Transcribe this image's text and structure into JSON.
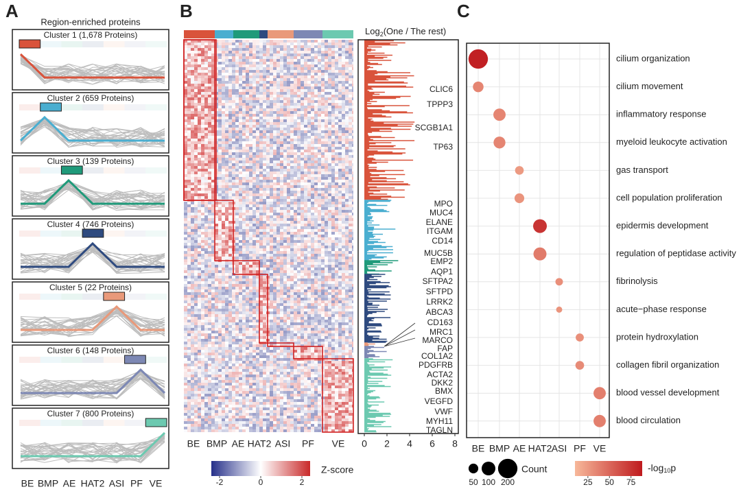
{
  "region_colors": [
    "#d9533b",
    "#4aaed0",
    "#1f9a7a",
    "#2e4a7f",
    "#e9997a",
    "#7d88b4",
    "#6cc9b0"
  ],
  "panel_a": {
    "letter": "A",
    "title": "Region-enriched proteins",
    "clusters": [
      "Cluster 1 (1,678 Proteins)",
      "Cluster 2 (659 Proteins)",
      "Cluster 3 (139 Proteins)",
      "Cluster 4 (746 Proteins)",
      "Cluster 5 (22 Proteins)",
      "Cluster 6 (148 Proteins)",
      "Cluster 7 (800 Proteins)"
    ],
    "regions": [
      "BE",
      "BMP",
      "AE",
      "HAT2",
      "ASI",
      "PF",
      "VE"
    ]
  },
  "panel_b": {
    "letter": "B",
    "regions": [
      "BE",
      "BMP",
      "AE",
      "HAT2",
      "ASI",
      "PF",
      "VE"
    ],
    "bar_title": {
      "base": "Log",
      "sub": "2",
      "rest": "(One / The rest)"
    },
    "xlim": [
      0,
      8
    ],
    "xticks": [
      0,
      2,
      4,
      6,
      8
    ],
    "genes": [
      {
        "name": "CLIC6",
        "color": "#d9533b"
      },
      {
        "name": "TPPP3",
        "color": "#d9533b"
      },
      {
        "name": "SCGB1A1",
        "color": "#d9533b"
      },
      {
        "name": "TP63",
        "color": "#d9533b"
      },
      {
        "name": "MPO",
        "color": "#4aaed0"
      },
      {
        "name": "MUC4",
        "color": "#4aaed0"
      },
      {
        "name": "ELANE",
        "color": "#4aaed0"
      },
      {
        "name": "ITGAM",
        "color": "#4aaed0"
      },
      {
        "name": "CD14",
        "color": "#4aaed0"
      },
      {
        "name": "MUC5B",
        "color": "#4aaed0"
      },
      {
        "name": "EMP2",
        "color": "#1f9a7a"
      },
      {
        "name": "AQP1",
        "color": "#1f9a7a"
      },
      {
        "name": "SFTPA2",
        "color": "#3a4a6a"
      },
      {
        "name": "SFTPD",
        "color": "#3a4a6a"
      },
      {
        "name": "LRRK2",
        "color": "#3a4a6a"
      },
      {
        "name": "ABCA3",
        "color": "#3a4a6a"
      },
      {
        "name": "CD163",
        "color": "#e9997a"
      },
      {
        "name": "MRC1",
        "color": "#e9997a"
      },
      {
        "name": "MARCO",
        "color": "#e9997a"
      },
      {
        "name": "FAP",
        "color": "#5a6a9a"
      },
      {
        "name": "COL1A2",
        "color": "#5a6a9a"
      },
      {
        "name": "PDGFRB",
        "color": "#6cc9b0"
      },
      {
        "name": "ACTA2",
        "color": "#6cc9b0"
      },
      {
        "name": "DKK2",
        "color": "#6cc9b0"
      },
      {
        "name": "BMX",
        "color": "#6cc9b0"
      },
      {
        "name": "VEGFD",
        "color": "#6cc9b0"
      },
      {
        "name": "VWF",
        "color": "#6cc9b0"
      },
      {
        "name": "MYH11",
        "color": "#6cc9b0"
      },
      {
        "name": "TAGLN",
        "color": "#6cc9b0"
      }
    ],
    "colorbar": {
      "lim": [
        -2.4,
        2.4
      ],
      "ticks": [
        -2,
        0,
        2
      ],
      "label": "Z-score"
    }
  },
  "panel_c": {
    "letter": "C",
    "regions": [
      "BE",
      "BMP",
      "AE",
      "HAT2",
      "ASI",
      "PF",
      "VE"
    ],
    "terms": [
      {
        "name": "cilium organization",
        "region": "BE",
        "count": 200,
        "log10p": 85
      },
      {
        "name": "cilium movement",
        "region": "BE",
        "count": 60,
        "log10p": 35
      },
      {
        "name": "inflammatory response",
        "region": "BMP",
        "count": 80,
        "log10p": 35
      },
      {
        "name": "myeloid leukocyte activation",
        "region": "BMP",
        "count": 75,
        "log10p": 35
      },
      {
        "name": "gas transport",
        "region": "AE",
        "count": 40,
        "log10p": 25
      },
      {
        "name": "cell population proliferation",
        "region": "AE",
        "count": 50,
        "log10p": 28
      },
      {
        "name": "epidermis development",
        "region": "HAT2",
        "count": 100,
        "log10p": 75
      },
      {
        "name": "regulation of peptidase activity",
        "region": "HAT2",
        "count": 90,
        "log10p": 40
      },
      {
        "name": "fibrinolysis",
        "region": "ASI",
        "count": 30,
        "log10p": 30
      },
      {
        "name": "acute−phase response",
        "region": "ASI",
        "count": 20,
        "log10p": 28
      },
      {
        "name": "protein hydroxylation",
        "region": "PF",
        "count": 35,
        "log10p": 30
      },
      {
        "name": "collagen fibril organization",
        "region": "PF",
        "count": 40,
        "log10p": 32
      },
      {
        "name": "blood vessel development",
        "region": "VE",
        "count": 80,
        "log10p": 38
      },
      {
        "name": "blood circulation",
        "region": "VE",
        "count": 80,
        "log10p": 38
      }
    ],
    "size_legend": {
      "title": "Count",
      "values": [
        50,
        100,
        200
      ]
    },
    "color_legend": {
      "base": "-log",
      "sub": "10",
      "rest": "p",
      "lim": [
        10,
        88
      ],
      "ticks": [
        25,
        50,
        75
      ]
    }
  }
}
